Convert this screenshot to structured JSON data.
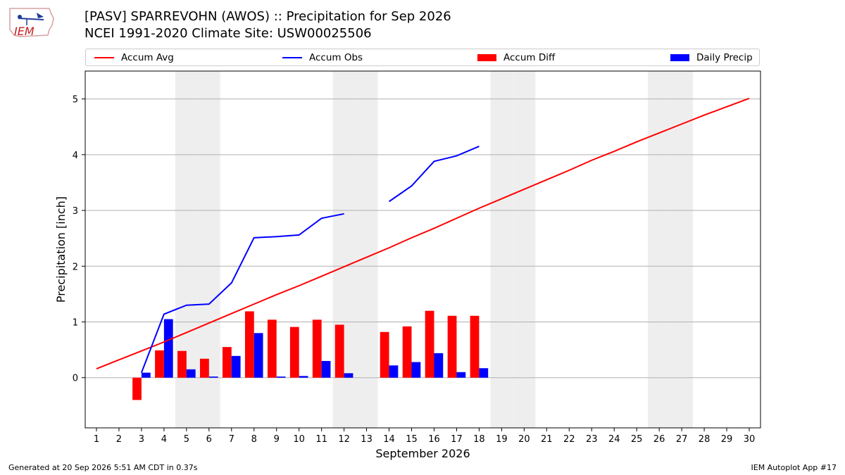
{
  "header": {
    "logo_text": "IEM",
    "title_line1": "[PASV] SPARREVOHN (AWOS) :: Precipitation for Sep 2026",
    "title_line2": "NCEI 1991-2020 Climate Site: USW00025506"
  },
  "footer": {
    "generated": "Generated at 20 Sep 2026 5:51 AM CDT in 0.37s",
    "app": "IEM Autoplot App #17"
  },
  "colors": {
    "accum_avg": "#ff0000",
    "accum_obs": "#0000ff",
    "accum_diff": "#ff0000",
    "daily_precip": "#0000ff",
    "weekend_shade": "#eeeeee",
    "grid": "#b0b0b0"
  },
  "chart_data": {
    "type": "bar",
    "xlabel": "September 2026",
    "ylabel": "Precipitation [inch]",
    "xlim": [
      0.5,
      30.5
    ],
    "ylim": [
      -0.9,
      5.5
    ],
    "yticks": [
      0,
      1,
      2,
      3,
      4,
      5
    ],
    "days": [
      1,
      2,
      3,
      4,
      5,
      6,
      7,
      8,
      9,
      10,
      11,
      12,
      13,
      14,
      15,
      16,
      17,
      18,
      19,
      20,
      21,
      22,
      23,
      24,
      25,
      26,
      27,
      28,
      29,
      30
    ],
    "weekend_days": [
      5,
      6,
      12,
      13,
      19,
      20,
      26,
      27
    ],
    "grid": true,
    "legend_placement": "top",
    "legend": [
      "Accum Avg",
      "Accum Obs",
      "Accum Diff",
      "Daily Precip"
    ],
    "series": [
      {
        "name": "Accum Avg",
        "type": "line",
        "x": [
          1,
          2,
          3,
          4,
          5,
          6,
          7,
          8,
          9,
          10,
          11,
          12,
          13,
          14,
          15,
          16,
          17,
          18,
          19,
          20,
          21,
          22,
          23,
          24,
          25,
          26,
          27,
          28,
          29,
          30
        ],
        "values": [
          0.16,
          0.32,
          0.48,
          0.64,
          0.81,
          0.98,
          1.15,
          1.32,
          1.49,
          1.65,
          1.82,
          1.99,
          2.16,
          2.33,
          2.51,
          2.68,
          2.86,
          3.04,
          3.21,
          3.38,
          3.55,
          3.72,
          3.9,
          4.06,
          4.23,
          4.39,
          4.55,
          4.71,
          4.86,
          5.01
        ]
      },
      {
        "name": "Accum Obs",
        "type": "line",
        "x": [
          3,
          4,
          5,
          6,
          7,
          8,
          9,
          10,
          11,
          12,
          13,
          14,
          15,
          16,
          17,
          18
        ],
        "values": [
          0.09,
          1.14,
          1.3,
          1.32,
          1.7,
          2.51,
          2.53,
          2.56,
          2.86,
          2.94,
          null,
          3.16,
          3.44,
          3.88,
          3.98,
          4.15
        ]
      },
      {
        "name": "Accum Diff",
        "type": "bar",
        "x": [
          3,
          4,
          5,
          6,
          7,
          8,
          9,
          10,
          11,
          12,
          14,
          15,
          16,
          17,
          18
        ],
        "values": [
          -0.4,
          0.49,
          0.48,
          0.34,
          0.55,
          1.19,
          1.04,
          0.91,
          1.04,
          0.95,
          0.82,
          0.92,
          1.2,
          1.11,
          1.11
        ]
      },
      {
        "name": "Daily Precip",
        "type": "bar",
        "x": [
          3,
          4,
          5,
          6,
          7,
          8,
          9,
          10,
          11,
          12,
          14,
          15,
          16,
          17,
          18
        ],
        "values": [
          0.09,
          1.05,
          0.15,
          0.02,
          0.39,
          0.8,
          0.02,
          0.03,
          0.3,
          0.08,
          0.22,
          0.28,
          0.44,
          0.1,
          0.17
        ]
      }
    ]
  }
}
